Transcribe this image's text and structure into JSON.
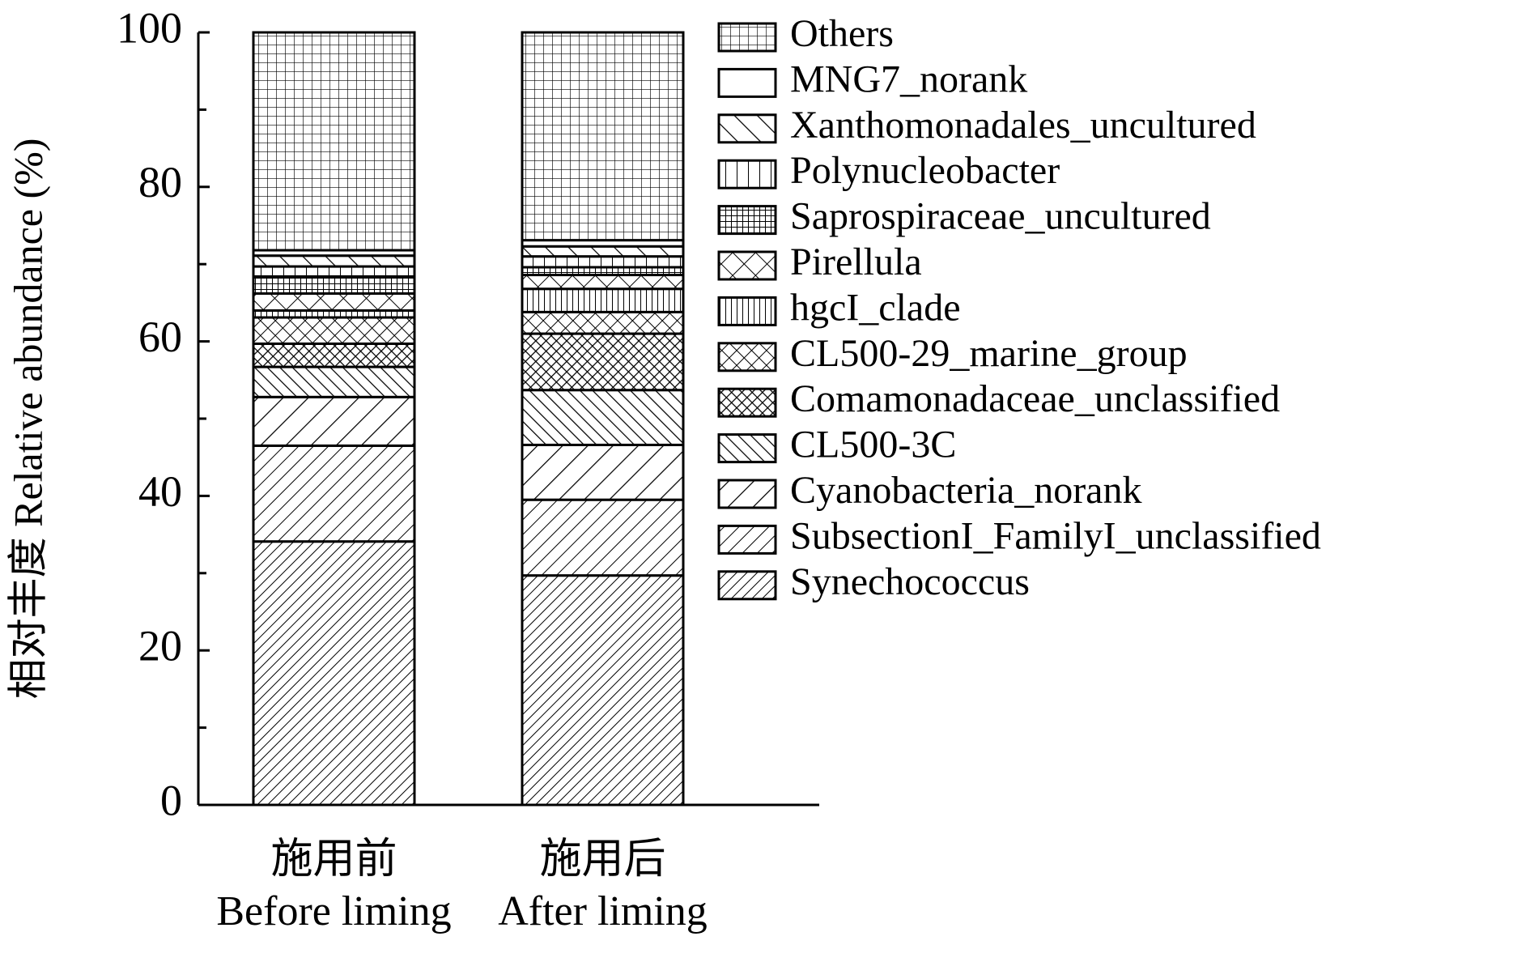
{
  "chart_data": {
    "type": "stacked_bar",
    "ylabel": "相对丰度 Relative abundance (%)",
    "categories": [
      "施用前\nBefore liming",
      "施用后\nAfter liming"
    ],
    "ylim": [
      0,
      100
    ],
    "yticks": [
      0,
      20,
      40,
      60,
      80,
      100
    ],
    "minor_yticks": [
      10,
      30,
      50,
      70,
      90
    ],
    "series": [
      {
        "name": "Synechococcus",
        "pattern": "diag-dense",
        "values": [
          34.1,
          29.7
        ]
      },
      {
        "name": "SubsectionI_FamilyI_unclassified",
        "pattern": "diag-medium",
        "values": [
          12.4,
          9.8
        ]
      },
      {
        "name": "Cyanobacteria_norank",
        "pattern": "diag-wide",
        "values": [
          6.3,
          7.1
        ]
      },
      {
        "name": "CL500-3C",
        "pattern": "back-medium",
        "values": [
          3.9,
          7.1
        ]
      },
      {
        "name": "Comamonadaceae_unclassified",
        "pattern": "cross-dense",
        "values": [
          3.0,
          7.3
        ]
      },
      {
        "name": "CL500-29_marine_group",
        "pattern": "cross-medium",
        "values": [
          3.4,
          2.8
        ]
      },
      {
        "name": "hgcI_clade",
        "pattern": "vert-dense",
        "values": [
          0.9,
          3.0
        ]
      },
      {
        "name": "Pirellula",
        "pattern": "cross-wide",
        "values": [
          2.2,
          1.8
        ]
      },
      {
        "name": "Saprospiraceae_uncultured",
        "pattern": "grid-dense",
        "values": [
          2.2,
          1.0
        ]
      },
      {
        "name": "Polynucleobacter",
        "pattern": "vert-wide",
        "values": [
          1.3,
          1.4
        ]
      },
      {
        "name": "Xanthomonadales_uncultured",
        "pattern": "back-wide",
        "values": [
          1.4,
          1.3
        ]
      },
      {
        "name": "MNG7_norank",
        "pattern": "blank",
        "values": [
          0.7,
          0.8
        ]
      },
      {
        "name": "Others",
        "pattern": "grid-medium",
        "values": [
          28.2,
          26.9
        ]
      }
    ]
  }
}
